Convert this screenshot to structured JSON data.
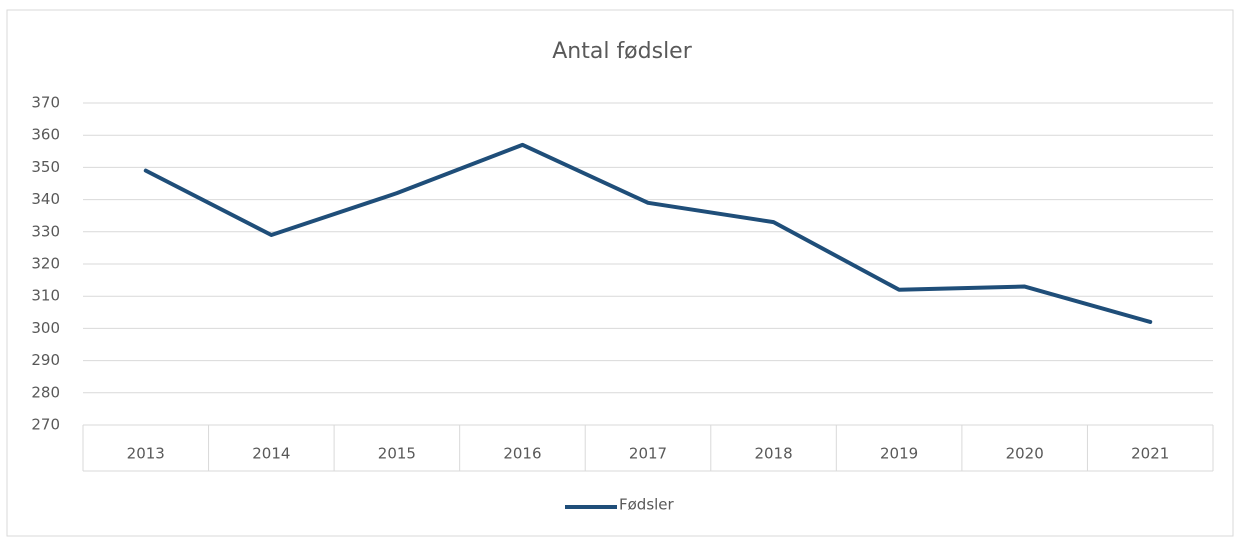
{
  "chart_data": {
    "type": "line",
    "title": "Antal fødsler",
    "categories": [
      "2013",
      "2014",
      "2015",
      "2016",
      "2017",
      "2018",
      "2019",
      "2020",
      "2021"
    ],
    "series": [
      {
        "name": "Fødsler",
        "color": "#1f4e79",
        "values": [
          349,
          329,
          342,
          357,
          339,
          333,
          312,
          313,
          302
        ]
      }
    ],
    "ylim": [
      270,
      370
    ],
    "yticks": [
      270,
      280,
      290,
      300,
      310,
      320,
      330,
      340,
      350,
      360,
      370
    ],
    "grid": true,
    "legend": "bottom"
  }
}
